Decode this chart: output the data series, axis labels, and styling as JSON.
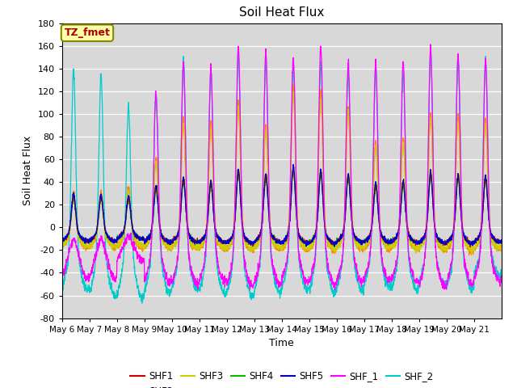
{
  "title": "Soil Heat Flux",
  "xlabel": "Time",
  "ylabel": "Soil Heat Flux",
  "ylim": [
    -80,
    180
  ],
  "yticks": [
    -80,
    -60,
    -40,
    -20,
    0,
    20,
    40,
    60,
    80,
    100,
    120,
    140,
    160,
    180
  ],
  "n_days": 16,
  "annotation_text": "TZ_fmet",
  "annotation_bg": "#ffffaa",
  "annotation_fg": "#aa0000",
  "annotation_border": "#888800",
  "bg_color": "#d8d8d8",
  "series_colors": {
    "SHF1": "#cc0000",
    "SHF2": "#ff8800",
    "SHF3": "#cccc00",
    "SHF4": "#00bb00",
    "SHF5": "#0000cc",
    "SHF_1": "#ff00ff",
    "SHF_2": "#00cccc"
  },
  "tick_labels": [
    "May 6",
    "May 7",
    "May 8",
    "May 9",
    "May 10",
    "May 11",
    "May 12",
    "May 13",
    "May 14",
    "May 15",
    "May 16",
    "May 17",
    "May 18",
    "May 19",
    "May 20",
    "May 21"
  ],
  "tick_positions": [
    0,
    1,
    2,
    3,
    4,
    5,
    6,
    7,
    8,
    9,
    10,
    11,
    12,
    13,
    14,
    15
  ]
}
